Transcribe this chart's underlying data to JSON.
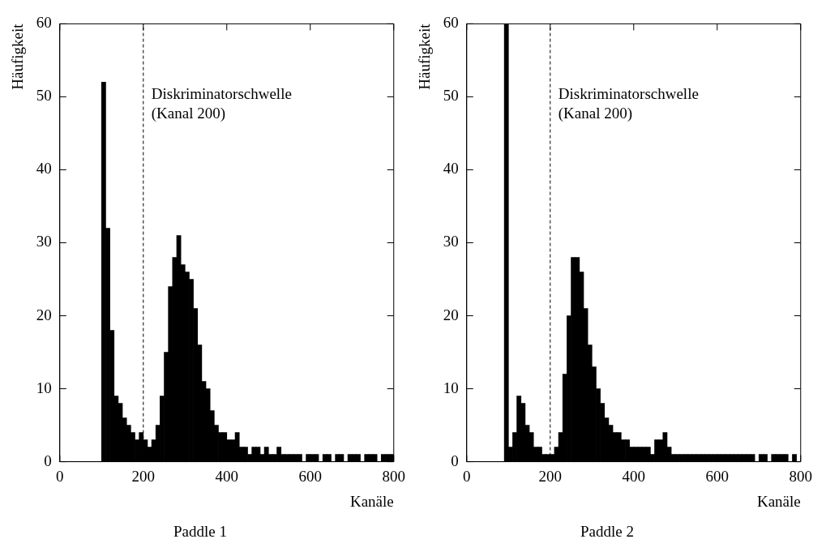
{
  "chart_data": [
    {
      "type": "histogram",
      "title": "Paddle 1",
      "xlabel": "Kanäle",
      "ylabel": "Häufigkeit",
      "bins": [
        0,
        10,
        20,
        30,
        40,
        50,
        60,
        70,
        80,
        90,
        100,
        110,
        120,
        130,
        140,
        150,
        160,
        170,
        180,
        190,
        200,
        210,
        220,
        230,
        240,
        250,
        260,
        270,
        280,
        290,
        300,
        310,
        320,
        330,
        340,
        350,
        360,
        370,
        380,
        390,
        400,
        410,
        420,
        430,
        440,
        450,
        460,
        470,
        480,
        490,
        500,
        510,
        520,
        530,
        540,
        550,
        560,
        570,
        580,
        590,
        600,
        610,
        620,
        630,
        640,
        650,
        660,
        670,
        680,
        690,
        700,
        710,
        720,
        730,
        740,
        750,
        760,
        770,
        780,
        790,
        800
      ],
      "values": [
        0,
        0,
        0,
        0,
        0,
        0,
        0,
        0,
        0,
        0,
        52,
        32,
        18,
        9,
        8,
        6,
        5,
        4,
        3,
        4,
        3,
        2,
        3,
        5,
        9,
        15,
        24,
        28,
        31,
        27,
        26,
        25,
        21,
        16,
        11,
        10,
        7,
        5,
        4,
        4,
        3,
        3,
        4,
        2,
        2,
        1,
        2,
        2,
        1,
        2,
        1,
        1,
        2,
        1,
        1,
        1,
        1,
        1,
        0,
        1,
        1,
        1,
        0,
        1,
        1,
        0,
        1,
        1,
        0,
        1,
        1,
        1,
        0,
        1,
        1,
        1,
        0,
        1,
        1,
        1
      ],
      "color": "#000000",
      "xlim": [
        0,
        800
      ],
      "xticks": [
        0,
        200,
        400,
        600,
        800
      ],
      "ylim": [
        0,
        60
      ],
      "yticks": [
        0,
        10,
        20,
        30,
        40,
        50,
        60
      ],
      "ref_lines": [
        {
          "axis": "x",
          "value": 200,
          "line_style": "dashed"
        }
      ],
      "annotations": [
        "Diskriminatorschwelle",
        "(Kanal 200)"
      ]
    },
    {
      "type": "histogram",
      "title": "Paddle 2",
      "xlabel": "Kanäle",
      "ylabel": "Häufigkeit",
      "bins": [
        0,
        10,
        20,
        30,
        40,
        50,
        60,
        70,
        80,
        90,
        100,
        110,
        120,
        130,
        140,
        150,
        160,
        170,
        180,
        190,
        200,
        210,
        220,
        230,
        240,
        250,
        260,
        270,
        280,
        290,
        300,
        310,
        320,
        330,
        340,
        350,
        360,
        370,
        380,
        390,
        400,
        410,
        420,
        430,
        440,
        450,
        460,
        470,
        480,
        490,
        500,
        510,
        520,
        530,
        540,
        550,
        560,
        570,
        580,
        590,
        600,
        610,
        620,
        630,
        640,
        650,
        660,
        670,
        680,
        690,
        700,
        710,
        720,
        730,
        740,
        750,
        760,
        770,
        780,
        790,
        800
      ],
      "values": [
        0,
        0,
        0,
        0,
        0,
        0,
        0,
        0,
        0,
        60,
        2,
        4,
        9,
        8,
        5,
        4,
        2,
        2,
        1,
        1,
        1,
        2,
        4,
        12,
        20,
        28,
        28,
        26,
        21,
        16,
        13,
        10,
        8,
        6,
        5,
        4,
        4,
        3,
        3,
        2,
        2,
        2,
        2,
        2,
        1,
        3,
        3,
        4,
        2,
        1,
        1,
        1,
        1,
        1,
        1,
        1,
        1,
        1,
        1,
        1,
        1,
        1,
        1,
        1,
        1,
        1,
        1,
        1,
        1,
        0,
        1,
        1,
        0,
        1,
        1,
        1,
        1,
        0,
        1,
        0
      ],
      "color": "#000000",
      "xlim": [
        0,
        800
      ],
      "xticks": [
        0,
        200,
        400,
        600,
        800
      ],
      "ylim": [
        0,
        60
      ],
      "yticks": [
        0,
        10,
        20,
        30,
        40,
        50,
        60
      ],
      "ref_lines": [
        {
          "axis": "x",
          "value": 200,
          "line_style": "dashed"
        }
      ],
      "annotations": [
        "Diskriminatorschwelle",
        "(Kanal 200)"
      ]
    }
  ]
}
